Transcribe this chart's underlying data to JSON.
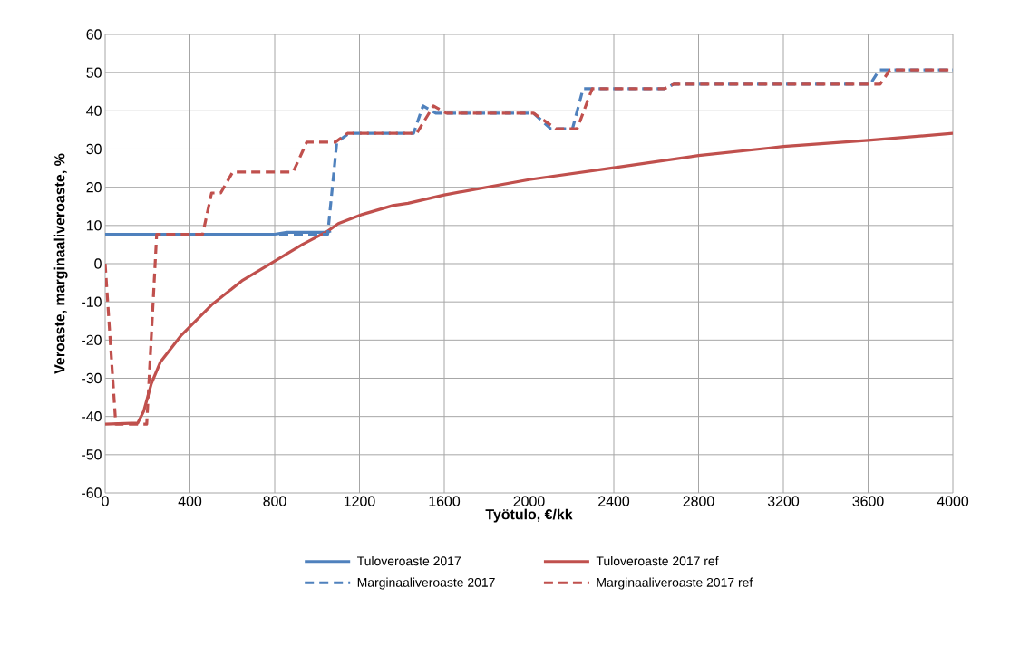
{
  "chart_data": {
    "type": "line",
    "xlabel": "Työtulo, €/kk",
    "ylabel": "Veroaste, marginaaliveroaste, %",
    "xlim": [
      0,
      4000
    ],
    "xticks": [
      0,
      400,
      800,
      1200,
      1600,
      2000,
      2400,
      2800,
      3200,
      3600,
      4000
    ],
    "ylim": [
      -60,
      60
    ],
    "yticks": [
      -60,
      -50,
      -40,
      -30,
      -20,
      -10,
      0,
      10,
      20,
      30,
      40,
      50,
      60
    ],
    "grid": true,
    "legend": "bottom",
    "marker": "none",
    "series": [
      {
        "name": "Tuloveroaste 2017",
        "color": "#4f81bd",
        "line_style": "solid",
        "x": [
          0,
          800,
          858,
          1050,
          1065
        ],
        "values": [
          7.7,
          7.7,
          8.2,
          8.2,
          8.6
        ]
      },
      {
        "name": "Tuloveroaste 2017 ref",
        "color": "#c0504d",
        "line_style": "solid",
        "x": [
          0,
          154,
          182,
          218,
          260,
          360,
          502,
          645,
          799,
          930,
          1050,
          1100,
          1214,
          1357,
          1429,
          1600,
          2000,
          2400,
          2800,
          3139,
          3200,
          3600,
          4000
        ],
        "values": [
          -42,
          -41.7,
          -38.6,
          -31.4,
          -25.8,
          -18.7,
          -10.8,
          -4.5,
          0.6,
          5,
          8.5,
          10.5,
          12.9,
          15.2,
          15.8,
          18,
          22,
          25.1,
          28.3,
          30.3,
          30.7,
          32.3,
          34.1
        ]
      },
      {
        "name": "Marginaaliveroaste 2017",
        "color": "#4f81bd",
        "line_style": "dashed",
        "x": [
          0,
          1050,
          1093,
          1150,
          1455,
          1500,
          1560,
          2021,
          2102,
          2205,
          2255,
          2640,
          2683,
          3610,
          3653,
          4000
        ],
        "values": [
          7.7,
          7.7,
          31.8,
          34.1,
          34.1,
          41.3,
          39.4,
          39.4,
          35.3,
          35.3,
          45.8,
          45.8,
          47,
          47,
          50.7,
          50.7
        ]
      },
      {
        "name": "Marginaaliveroaste 2017 ref",
        "color": "#c0504d",
        "line_style": "dashed",
        "x": [
          0,
          50,
          196,
          243,
          460,
          502,
          545,
          602,
          887,
          951,
          1086,
          1143,
          1470,
          1549,
          1610,
          2021,
          2127,
          2227,
          2298,
          2640,
          2683,
          3657,
          3703,
          4000
        ],
        "values": [
          0,
          -42,
          -42,
          7.7,
          7.7,
          18.5,
          18.5,
          24,
          24,
          31.8,
          31.8,
          34.1,
          34.1,
          41.3,
          39.4,
          39.4,
          35.3,
          35.3,
          45.8,
          45.8,
          47,
          47,
          50.7,
          50.7
        ]
      }
    ]
  }
}
